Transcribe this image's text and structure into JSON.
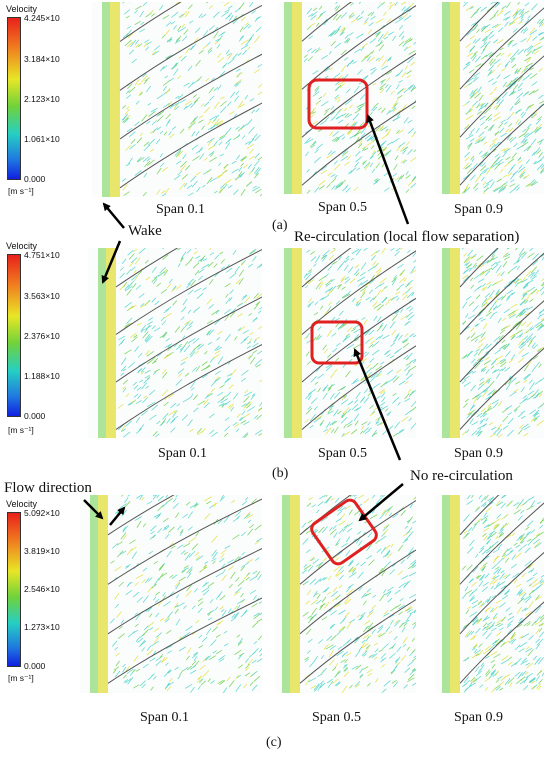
{
  "legend_title": "Velocity",
  "unit": "[m s⁻¹]",
  "rows": [
    {
      "label": "(a)",
      "ticks": [
        "4.245×10",
        "3.184×10",
        "2.123×10",
        "1.061×10",
        "0.000"
      ],
      "spans": [
        "Span 0.1",
        "Span 0.5",
        "Span 0.9"
      ]
    },
    {
      "label": "(b)",
      "ticks": [
        "4.751×10",
        "3.563×10",
        "2.376×10",
        "1.188×10",
        "0.000"
      ],
      "spans": [
        "Span 0.1",
        "Span 0.5",
        "Span 0.9"
      ]
    },
    {
      "label": "(c)",
      "ticks": [
        "5.092×10",
        "3.819×10",
        "2.546×10",
        "1.273×10",
        "0.000"
      ],
      "spans": [
        "Span 0.1",
        "Span 0.5",
        "Span 0.9"
      ]
    }
  ],
  "annotations": {
    "wake": "Wake",
    "recirculation": "Re-circulation (local flow separation)",
    "no_recirculation": "No re-circulation",
    "flow_direction": "Flow direction"
  },
  "colors": {
    "box": "#e02020",
    "vector_cyan": "#4fd3c9",
    "vector_green": "#6ccf4a",
    "vector_yellow": "#e3df3a",
    "blade": "#555555"
  }
}
